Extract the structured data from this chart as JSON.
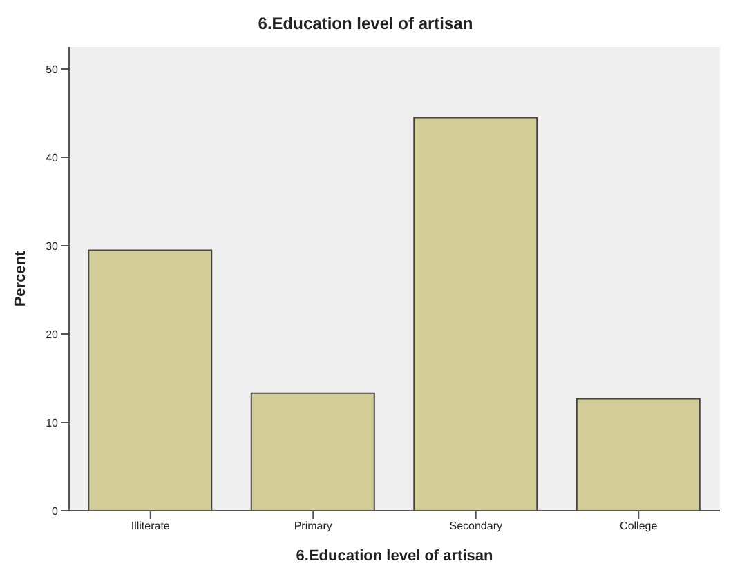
{
  "chart_data": {
    "type": "bar",
    "title": "6.Education level of artisan",
    "xlabel": "6.Education level of artisan",
    "ylabel": "Percent",
    "categories": [
      "Illiterate",
      "Primary",
      "Secondary",
      "College"
    ],
    "values": [
      29.5,
      13.3,
      44.5,
      12.7
    ],
    "color": "#d3ce97",
    "ylim": [
      0,
      52.5
    ],
    "yticks": [
      0,
      10,
      20,
      30,
      40,
      50
    ],
    "grid": false
  }
}
